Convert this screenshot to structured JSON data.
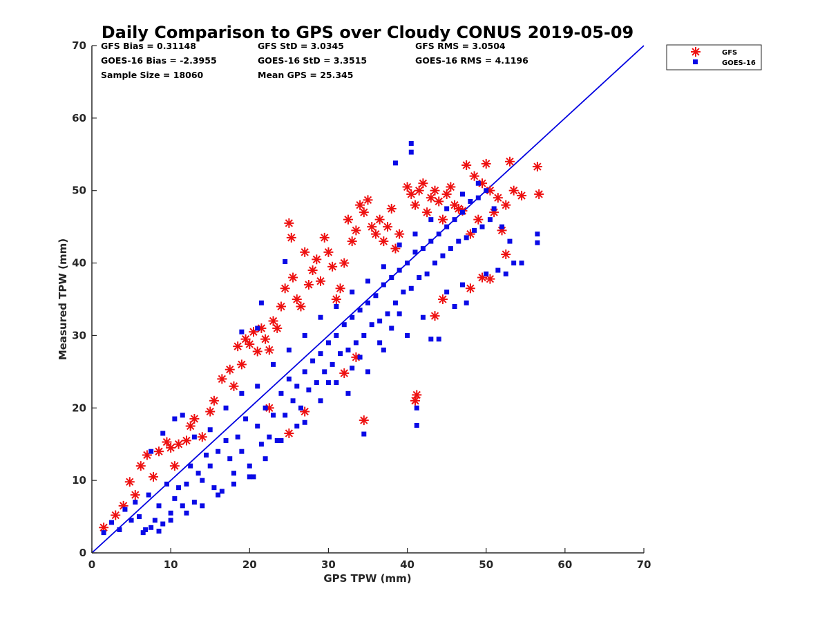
{
  "chart_data": {
    "type": "scatter",
    "title": "Daily Comparison to GPS over Cloudy CONUS 2019-05-09",
    "xlabel": "GPS TPW (mm)",
    "ylabel": "Measured TPW (mm)",
    "xlim": [
      0,
      70
    ],
    "ylim": [
      0,
      70
    ],
    "xticks": [
      "0",
      "10",
      "20",
      "30",
      "40",
      "50",
      "60",
      "70"
    ],
    "yticks": [
      "0",
      "10",
      "20",
      "30",
      "40",
      "50",
      "60",
      "70"
    ],
    "grid": false,
    "legend_position": "outside top-right",
    "stats": [
      [
        "GFS Bias = 0.31148",
        "GFS StD = 3.0345",
        "GFS RMS = 3.0504"
      ],
      [
        "GOES-16 Bias = -2.3955",
        "GOES-16 StD = 3.3515",
        "GOES-16 RMS = 4.1196"
      ],
      [
        "Sample Size = 18060",
        "Mean GPS = 25.345",
        ""
      ]
    ],
    "reference_line": {
      "x": [
        0,
        70
      ],
      "y": [
        0,
        70
      ],
      "color": "#0000e0"
    },
    "series": [
      {
        "name": "GFS",
        "marker": "asterisk",
        "color": "#ee1111",
        "points": [
          [
            1.5,
            3.5
          ],
          [
            3,
            5.2
          ],
          [
            4,
            6.5
          ],
          [
            4.8,
            9.8
          ],
          [
            5.5,
            8
          ],
          [
            6.2,
            12
          ],
          [
            7,
            13.5
          ],
          [
            7.8,
            10.5
          ],
          [
            8.5,
            14
          ],
          [
            9.5,
            15.3
          ],
          [
            10,
            14.5
          ],
          [
            10.5,
            12
          ],
          [
            11,
            15
          ],
          [
            12,
            15.5
          ],
          [
            12.5,
            17.5
          ],
          [
            13,
            18.5
          ],
          [
            14,
            16
          ],
          [
            15,
            19.5
          ],
          [
            15.5,
            21
          ],
          [
            16.5,
            24
          ],
          [
            17.5,
            25.3
          ],
          [
            18,
            23
          ],
          [
            18.5,
            28.5
          ],
          [
            19,
            26
          ],
          [
            19.5,
            29.5
          ],
          [
            20,
            28.8
          ],
          [
            20.5,
            30.5
          ],
          [
            21,
            27.8
          ],
          [
            21.5,
            31
          ],
          [
            22,
            29.5
          ],
          [
            22.5,
            28
          ],
          [
            23,
            32
          ],
          [
            23.5,
            31
          ],
          [
            24,
            34
          ],
          [
            24.5,
            36.5
          ],
          [
            25,
            45.5
          ],
          [
            25.3,
            43.5
          ],
          [
            25.5,
            38
          ],
          [
            26,
            35
          ],
          [
            26.5,
            34
          ],
          [
            27,
            41.5
          ],
          [
            27.5,
            37
          ],
          [
            28,
            39
          ],
          [
            28.5,
            40.5
          ],
          [
            29,
            37.5
          ],
          [
            29.5,
            43.5
          ],
          [
            30,
            41.5
          ],
          [
            30.5,
            39.5
          ],
          [
            31,
            35
          ],
          [
            31.5,
            36.5
          ],
          [
            32,
            40
          ],
          [
            32.5,
            46
          ],
          [
            33,
            43
          ],
          [
            33.5,
            44.5
          ],
          [
            34,
            48
          ],
          [
            34.5,
            47
          ],
          [
            35,
            48.7
          ],
          [
            35.5,
            45
          ],
          [
            36,
            44
          ],
          [
            36.5,
            46
          ],
          [
            37,
            43
          ],
          [
            37.5,
            45
          ],
          [
            38,
            47.5
          ],
          [
            38.5,
            42
          ],
          [
            39,
            44
          ],
          [
            40,
            50.5
          ],
          [
            40.5,
            49.5
          ],
          [
            41,
            48
          ],
          [
            41.5,
            50
          ],
          [
            42,
            51
          ],
          [
            42.5,
            47
          ],
          [
            43,
            49
          ],
          [
            43.5,
            50
          ],
          [
            44,
            48.5
          ],
          [
            44.5,
            46
          ],
          [
            45,
            49.5
          ],
          [
            45.5,
            50.5
          ],
          [
            46,
            48
          ],
          [
            46.5,
            47.5
          ],
          [
            47,
            47.2
          ],
          [
            47.5,
            53.5
          ],
          [
            48,
            44
          ],
          [
            48.5,
            52
          ],
          [
            49,
            46
          ],
          [
            49.5,
            51
          ],
          [
            50,
            53.7
          ],
          [
            50.5,
            50
          ],
          [
            51,
            47
          ],
          [
            51.5,
            49
          ],
          [
            52,
            44.5
          ],
          [
            52.5,
            48
          ],
          [
            53,
            54
          ],
          [
            53.5,
            50
          ],
          [
            54.5,
            49.3
          ],
          [
            56.5,
            53.3
          ],
          [
            56.7,
            49.5
          ],
          [
            52.5,
            41.2
          ],
          [
            41.2,
            21.8
          ],
          [
            41,
            21
          ],
          [
            34.5,
            18.3
          ],
          [
            48,
            36.5
          ],
          [
            49.5,
            38
          ],
          [
            50.5,
            37.8
          ],
          [
            44.5,
            35
          ],
          [
            43.5,
            32.7
          ],
          [
            33.5,
            27
          ],
          [
            32,
            24.8
          ],
          [
            25,
            16.5
          ],
          [
            27,
            19.5
          ],
          [
            22.5,
            20
          ]
        ]
      },
      {
        "name": "GOES-16",
        "marker": "square",
        "color": "#0a0ae6",
        "points": [
          [
            1.5,
            2.8
          ],
          [
            2.5,
            4.2
          ],
          [
            3.5,
            3.2
          ],
          [
            4.2,
            6
          ],
          [
            5,
            4.5
          ],
          [
            5.5,
            7
          ],
          [
            6,
            5
          ],
          [
            6.8,
            3.2
          ],
          [
            7.2,
            8
          ],
          [
            7.5,
            3.5
          ],
          [
            8,
            4.5
          ],
          [
            8.5,
            6.5
          ],
          [
            9,
            4
          ],
          [
            9.5,
            9.5
          ],
          [
            10,
            5.5
          ],
          [
            10.5,
            7.5
          ],
          [
            11,
            9
          ],
          [
            11.5,
            6.5
          ],
          [
            12,
            9.5
          ],
          [
            12.5,
            12
          ],
          [
            13,
            7
          ],
          [
            13.5,
            11
          ],
          [
            14,
            10
          ],
          [
            14.5,
            13.5
          ],
          [
            15,
            12
          ],
          [
            15.5,
            9
          ],
          [
            16,
            14
          ],
          [
            16.5,
            8.5
          ],
          [
            17,
            15.5
          ],
          [
            17.5,
            13
          ],
          [
            18,
            11
          ],
          [
            18.5,
            16
          ],
          [
            19,
            14
          ],
          [
            19.5,
            18.5
          ],
          [
            20,
            12
          ],
          [
            20.5,
            10.5
          ],
          [
            21,
            17.5
          ],
          [
            21.5,
            15
          ],
          [
            22,
            20
          ],
          [
            22.5,
            16
          ],
          [
            23,
            19
          ],
          [
            23.5,
            15.5
          ],
          [
            24,
            22
          ],
          [
            24.5,
            19
          ],
          [
            25,
            24
          ],
          [
            25.5,
            21
          ],
          [
            26,
            23
          ],
          [
            26.5,
            20
          ],
          [
            27,
            25
          ],
          [
            27.5,
            22.5
          ],
          [
            28,
            26.5
          ],
          [
            28.5,
            23.5
          ],
          [
            29,
            27.5
          ],
          [
            29.5,
            25
          ],
          [
            30,
            29
          ],
          [
            30.5,
            26
          ],
          [
            31,
            30
          ],
          [
            31.5,
            27.5
          ],
          [
            32,
            31.5
          ],
          [
            32.5,
            28
          ],
          [
            33,
            32.5
          ],
          [
            33.5,
            29
          ],
          [
            34,
            33.5
          ],
          [
            34.5,
            30
          ],
          [
            35,
            34.5
          ],
          [
            35.5,
            31.5
          ],
          [
            36,
            35.5
          ],
          [
            36.5,
            32
          ],
          [
            37,
            37
          ],
          [
            37.5,
            33
          ],
          [
            38,
            38
          ],
          [
            38.5,
            34.5
          ],
          [
            39,
            39
          ],
          [
            39.5,
            36
          ],
          [
            40,
            40
          ],
          [
            40.5,
            36.5
          ],
          [
            41,
            41.5
          ],
          [
            41.5,
            38
          ],
          [
            42,
            42
          ],
          [
            42.5,
            38.5
          ],
          [
            43,
            43
          ],
          [
            43.5,
            40
          ],
          [
            44,
            44
          ],
          [
            44.5,
            41
          ],
          [
            45,
            45
          ],
          [
            45.5,
            42
          ],
          [
            46,
            46
          ],
          [
            46.5,
            43
          ],
          [
            47,
            47
          ],
          [
            47.5,
            43.5
          ],
          [
            48,
            48.5
          ],
          [
            48.5,
            44.5
          ],
          [
            49,
            49
          ],
          [
            49.5,
            45
          ],
          [
            50,
            50
          ],
          [
            50.5,
            46
          ],
          [
            51,
            47.5
          ],
          [
            52,
            45
          ],
          [
            53,
            43
          ],
          [
            53.5,
            40
          ],
          [
            54.5,
            40
          ],
          [
            56.5,
            44
          ],
          [
            56.5,
            42.8
          ],
          [
            40.5,
            56.5
          ],
          [
            40.5,
            55.3
          ],
          [
            38.5,
            53.8
          ],
          [
            24.5,
            40.2
          ],
          [
            21.5,
            34.5
          ],
          [
            21,
            31
          ],
          [
            19,
            30.5
          ],
          [
            34.5,
            16.4
          ],
          [
            41.2,
            17.6
          ],
          [
            41.2,
            20
          ],
          [
            32.5,
            22
          ],
          [
            30,
            23.5
          ],
          [
            29,
            21
          ],
          [
            27,
            18
          ],
          [
            24,
            15.5
          ],
          [
            22,
            13
          ],
          [
            20,
            10.5
          ],
          [
            18,
            9.5
          ],
          [
            16,
            8
          ],
          [
            14,
            6.5
          ],
          [
            12,
            5.5
          ],
          [
            10,
            4.5
          ],
          [
            8.5,
            3
          ],
          [
            6.5,
            2.8
          ],
          [
            7.5,
            14
          ],
          [
            9,
            16.5
          ],
          [
            10.5,
            18.5
          ],
          [
            11.5,
            19
          ],
          [
            13,
            16
          ],
          [
            15,
            17
          ],
          [
            17,
            20
          ],
          [
            19,
            22
          ],
          [
            21,
            23
          ],
          [
            23,
            26
          ],
          [
            25,
            28
          ],
          [
            27,
            30
          ],
          [
            29,
            32.5
          ],
          [
            31,
            34
          ],
          [
            33,
            36
          ],
          [
            35,
            37.5
          ],
          [
            37,
            39.5
          ],
          [
            39,
            42.5
          ],
          [
            41,
            44
          ],
          [
            43,
            46
          ],
          [
            45,
            47.5
          ],
          [
            47,
            49.5
          ],
          [
            49,
            51
          ],
          [
            44,
            29.5
          ],
          [
            43,
            29.5
          ],
          [
            40,
            30
          ],
          [
            38,
            31
          ],
          [
            36.5,
            29
          ],
          [
            34,
            27
          ],
          [
            42,
            32.5
          ],
          [
            46,
            34
          ],
          [
            47.5,
            34.5
          ],
          [
            50,
            38.5
          ],
          [
            51.5,
            39
          ],
          [
            52.5,
            38.5
          ],
          [
            47,
            37
          ],
          [
            45,
            36
          ],
          [
            33,
            25.5
          ],
          [
            31,
            23.5
          ],
          [
            35,
            25
          ],
          [
            37,
            28
          ],
          [
            39,
            33
          ],
          [
            26,
            17.5
          ]
        ]
      }
    ]
  }
}
